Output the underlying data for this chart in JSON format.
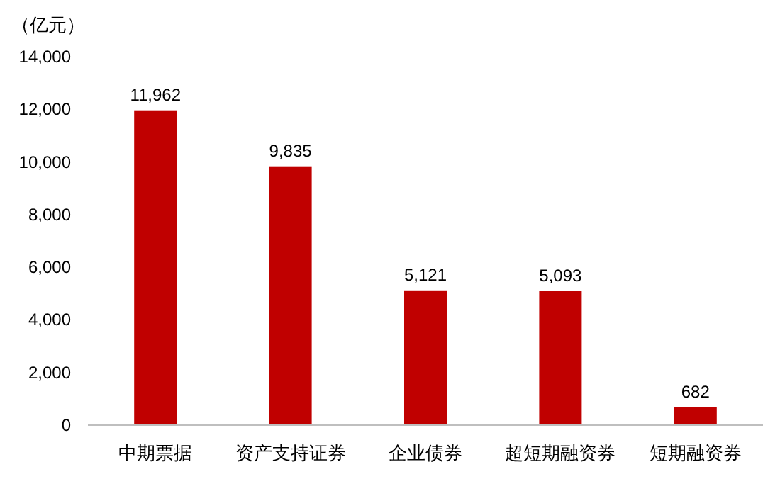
{
  "chart_data": {
    "type": "bar",
    "ylabel": "（亿元）",
    "categories": [
      "中期票据",
      "资产支持证券",
      "企业债券",
      "超短期融资券",
      "短期融资券"
    ],
    "values": [
      11962,
      9835,
      5121,
      5093,
      682
    ],
    "value_labels": [
      "11,962",
      "9,835",
      "5,121",
      "5,093",
      "682"
    ],
    "color": "#c00000",
    "ylim": [
      0,
      14000
    ],
    "yticks": [
      0,
      {
        "value": 2000,
        "label": "2,000"
      },
      {
        "value": 4000,
        "label": "4,000"
      },
      {
        "value": 6000,
        "label": "6,000"
      },
      {
        "value": 8000,
        "label": "8,000"
      },
      {
        "value": 10000,
        "label": "10,000"
      },
      {
        "value": 12000,
        "label": "12,000"
      },
      {
        "value": 14000,
        "label": "14,000"
      }
    ],
    "grid": false
  }
}
